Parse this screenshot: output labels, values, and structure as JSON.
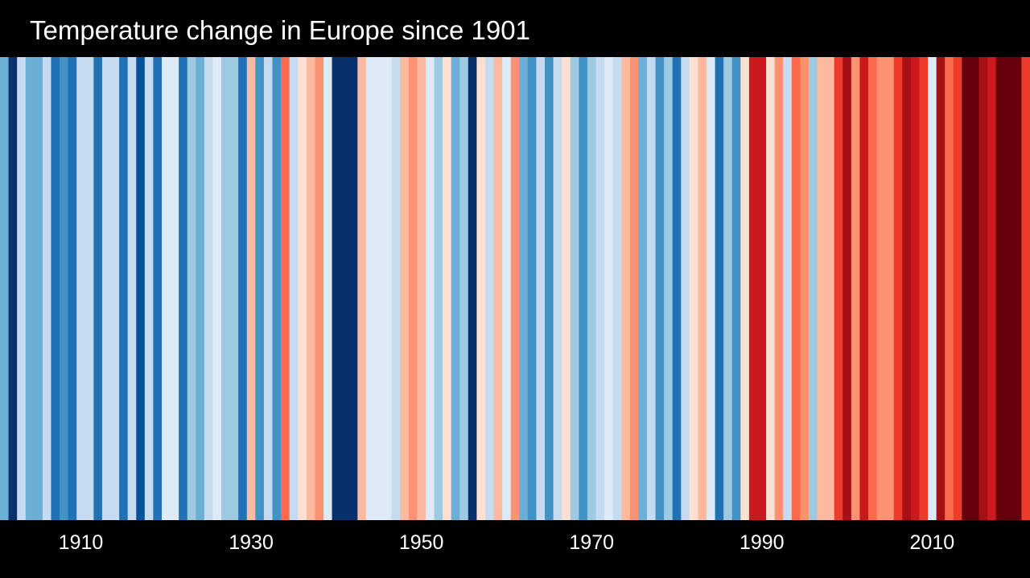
{
  "chart_data": {
    "type": "heatmap",
    "title": "Temperature change in Europe since 1901",
    "xlabel": "",
    "ylabel": "",
    "x_range": [
      1901,
      2021
    ],
    "tick_labels": [
      "1910",
      "1930",
      "1950",
      "1970",
      "1990",
      "2010"
    ],
    "grid": false,
    "legend": "none",
    "years": [
      1901,
      2021
    ],
    "colors": [
      "#6baed6",
      "#08306b",
      "#c6dbef",
      "#6baed6",
      "#6baed6",
      "#c6dbef",
      "#2171b5",
      "#4292c6",
      "#2171b5",
      "#c6dbef",
      "#c6dbef",
      "#2171b5",
      "#c6dbef",
      "#c6dbef",
      "#2171b5",
      "#c6dbef",
      "#08519c",
      "#c6dbef",
      "#2171b5",
      "#deebf7",
      "#deebf7",
      "#2171b5",
      "#9ecae1",
      "#6baed6",
      "#c6dbef",
      "#deebf7",
      "#9ecae1",
      "#9ecae1",
      "#2171b5",
      "#fcbba1",
      "#4292c6",
      "#c6dbef",
      "#4292c6",
      "#fb6a4a",
      "#c6dbef",
      "#fee0d2",
      "#fcbba1",
      "#fc9272",
      "#deebf7",
      "#08306b",
      "#08306b",
      "#08306b",
      "#fcbba1",
      "#deebf7",
      "#deebf7",
      "#deebf7",
      "#c6dbef",
      "#fcbba1",
      "#fc9272",
      "#fcbba1",
      "#deebf7",
      "#9ecae1",
      "#fee0d2",
      "#6baed6",
      "#9ecae1",
      "#08306b",
      "#fee0d2",
      "#c6dbef",
      "#fcbba1",
      "#deebf7",
      "#fc9272",
      "#6baed6",
      "#4292c6",
      "#c6dbef",
      "#4292c6",
      "#c6dbef",
      "#fee0d2",
      "#9ecae1",
      "#4292c6",
      "#9ecae1",
      "#c6dbef",
      "#deebf7",
      "#c6dbef",
      "#fcbba1",
      "#fc9272",
      "#6baed6",
      "#c6dbef",
      "#4292c6",
      "#9ecae1",
      "#2171b5",
      "#c6dbef",
      "#fee0d2",
      "#fcbba1",
      "#deebf7",
      "#2171b5",
      "#9ecae1",
      "#4292c6",
      "#fee0d2",
      "#cb181d",
      "#cb181d",
      "#fee0d2",
      "#fc9272",
      "#c6dbef",
      "#fb6a4a",
      "#fc9272",
      "#9ecae1",
      "#fcbba1",
      "#fcbba1",
      "#ef3b2c",
      "#a50f15",
      "#fc9272",
      "#cb181d",
      "#fb6a4a",
      "#fc9272",
      "#fc9272",
      "#ef3b2c",
      "#a50f15",
      "#cb181d",
      "#ef3b2c",
      "#deebf7",
      "#a50f15",
      "#fb6a4a",
      "#ef3b2c",
      "#67000d",
      "#67000d",
      "#a50f15",
      "#cb181d",
      "#67000d",
      "#67000d",
      "#67000d",
      "#ef3b2c"
    ]
  }
}
